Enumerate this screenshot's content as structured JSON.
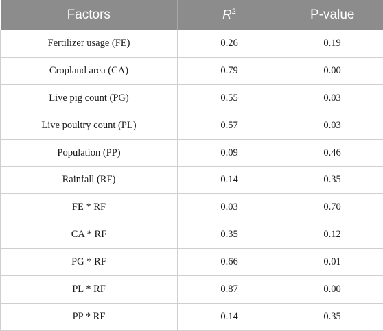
{
  "table": {
    "headers": {
      "factors": "Factors",
      "r_main": "R",
      "r_sup": "2",
      "p_value": "P-value"
    },
    "rows": [
      {
        "factor": "Fertilizer usage (FE)",
        "r2": "0.26",
        "p": "0.19"
      },
      {
        "factor": "Cropland area (CA)",
        "r2": "0.79",
        "p": "0.00"
      },
      {
        "factor": "Live pig count (PG)",
        "r2": "0.55",
        "p": "0.03"
      },
      {
        "factor": "Live poultry count (PL)",
        "r2": "0.57",
        "p": "0.03"
      },
      {
        "factor": "Population (PP)",
        "r2": "0.09",
        "p": "0.46"
      },
      {
        "factor": "Rainfall (RF)",
        "r2": "0.14",
        "p": "0.35"
      },
      {
        "factor": "FE * RF",
        "r2": "0.03",
        "p": "0.70"
      },
      {
        "factor": "CA * RF",
        "r2": "0.35",
        "p": "0.12"
      },
      {
        "factor": "PG * RF",
        "r2": "0.66",
        "p": "0.01"
      },
      {
        "factor": "PL * RF",
        "r2": "0.87",
        "p": "0.00"
      },
      {
        "factor": "PP * RF",
        "r2": "0.14",
        "p": "0.35"
      }
    ]
  }
}
